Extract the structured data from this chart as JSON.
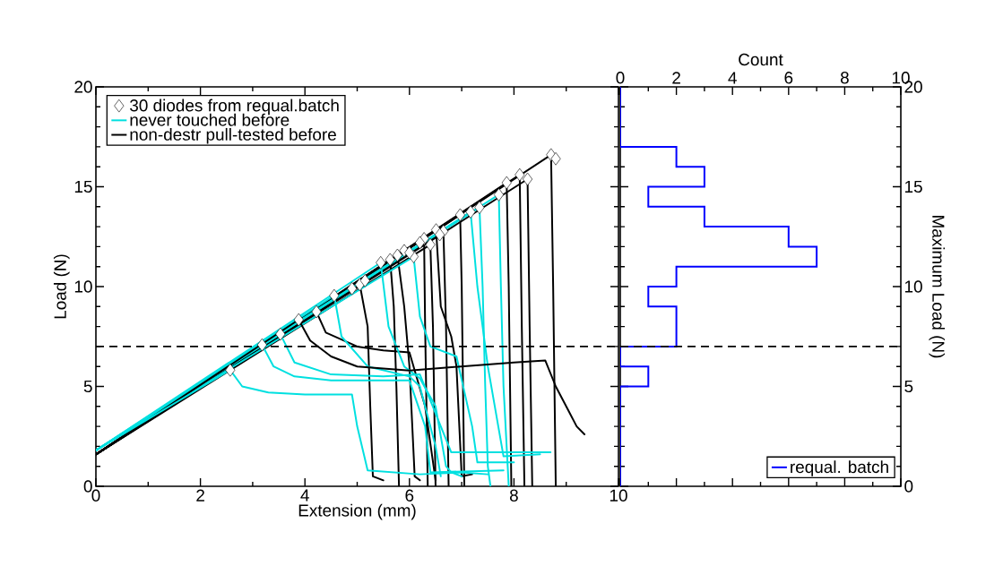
{
  "chart_data": [
    {
      "type": "line",
      "xlabel": "Extension (mm)",
      "ylabel": "Load (N)",
      "xlim": [
        0,
        10
      ],
      "xticks": [
        0,
        2,
        4,
        6,
        8,
        10
      ],
      "ylim": [
        0,
        20
      ],
      "yticks": [
        0,
        5,
        10,
        15,
        20
      ],
      "legend": "top left",
      "ref_lines": [
        {
          "axis": "y",
          "value": 7,
          "color": "#000000",
          "line_style": "dashed"
        }
      ],
      "series": [
        {
          "name": "30 diodes from requal.batch",
          "type": "scatter",
          "marker": "diamond",
          "color": "#000000",
          "x": [
            2.57,
            3.18,
            3.53,
            3.88,
            4.22,
            4.56,
            5.05,
            5.45,
            5.63,
            5.77,
            6.08,
            6.28,
            6.4,
            6.51,
            6.65,
            6.97,
            7.17,
            7.34,
            7.71,
            7.86,
            8.11,
            8.26,
            8.71,
            5.15,
            6.2,
            6.58,
            5.9,
            4.9,
            8.8,
            6.0
          ],
          "values": [
            5.82,
            7.08,
            7.62,
            8.34,
            8.74,
            9.55,
            10.1,
            11.2,
            11.35,
            11.57,
            11.5,
            12.4,
            12.1,
            12.84,
            12.77,
            13.59,
            13.74,
            13.96,
            14.6,
            15.2,
            15.6,
            15.38,
            16.6,
            10.3,
            12.2,
            12.6,
            11.8,
            9.9,
            16.4,
            11.7
          ]
        },
        {
          "name": "never touched before",
          "color": "#00e0e0",
          "x": [
            0,
            2.57,
            2.8,
            3.3,
            4.0,
            4.9,
            5.0,
            5.2,
            6.2,
            7.0,
            7.5
          ],
          "values": [
            1.8,
            5.82,
            5.0,
            4.7,
            4.6,
            4.6,
            3.0,
            0.8,
            0.6,
            0.7,
            0.6
          ]
        },
        {
          "name": "non-destr pull-tested before",
          "color": "#000000",
          "x": [
            0,
            3.88,
            4.1,
            4.5,
            5.0,
            6.0,
            7.0,
            8.0,
            8.6,
            8.8,
            9.0,
            9.2,
            9.35
          ],
          "values": [
            1.6,
            8.34,
            7.3,
            6.5,
            6.0,
            5.8,
            6.0,
            6.2,
            6.3,
            5.0,
            4.0,
            3.0,
            2.6
          ]
        },
        {
          "color": "#00e0e0",
          "x": [
            0,
            3.18,
            3.4,
            3.8,
            4.5,
            5.5,
            6.0,
            6.3,
            6.4,
            7.8
          ],
          "values": [
            1.8,
            7.08,
            6.0,
            5.5,
            5.3,
            5.3,
            5.3,
            3.0,
            0.7,
            0.8
          ]
        },
        {
          "color": "#00e0e0",
          "x": [
            0,
            3.53,
            3.8,
            4.5,
            5.5,
            6.2,
            6.6,
            6.8,
            8.7
          ],
          "values": [
            1.8,
            7.62,
            6.2,
            5.6,
            5.5,
            5.6,
            3.0,
            1.7,
            1.7
          ]
        },
        {
          "color": "#00e0e0",
          "x": [
            0,
            4.56,
            4.7,
            5.2,
            6.0,
            6.2,
            6.5,
            6.6
          ],
          "values": [
            1.8,
            9.55,
            7.5,
            6.0,
            5.5,
            5.0,
            2.0,
            0.5
          ]
        },
        {
          "color": "#00e0e0",
          "x": [
            0,
            5.45,
            5.6,
            5.9,
            6.2,
            6.5,
            6.7,
            6.8,
            7.0
          ],
          "values": [
            1.8,
            11.2,
            8.0,
            6.0,
            5.4,
            4.0,
            1.0,
            0.7,
            0.5
          ]
        },
        {
          "color": "#00e0e0",
          "x": [
            0,
            6.08,
            6.2,
            6.4,
            6.9,
            7.2,
            7.3,
            8.0
          ],
          "values": [
            1.8,
            11.5,
            8.5,
            7.0,
            6.5,
            3.0,
            1.2,
            1.2
          ]
        },
        {
          "color": "#00e0e0",
          "x": [
            0,
            7.17,
            7.3,
            7.5,
            7.7,
            7.8,
            8.5
          ],
          "values": [
            1.8,
            13.74,
            10.0,
            6.0,
            3.0,
            1.5,
            1.6
          ]
        },
        {
          "color": "#00e0e0",
          "x": [
            0,
            7.34,
            7.4,
            7.45,
            7.5,
            7.55
          ],
          "values": [
            1.8,
            13.96,
            10.0,
            5.0,
            1.0,
            0.0
          ]
        },
        {
          "color": "#00e0e0",
          "x": [
            0,
            7.71,
            7.75,
            7.8,
            7.9
          ],
          "values": [
            1.8,
            14.6,
            10.0,
            5.0,
            0.0
          ]
        },
        {
          "color": "#000000",
          "x": [
            0,
            4.22,
            4.4,
            5.0,
            5.5,
            6.0,
            6.3,
            6.5
          ],
          "values": [
            1.6,
            8.74,
            7.7,
            7.0,
            6.8,
            6.7,
            4.0,
            0.3
          ]
        },
        {
          "color": "#000000",
          "x": [
            0,
            5.05,
            5.2,
            5.25,
            5.3,
            5.5
          ],
          "values": [
            1.6,
            10.1,
            8.0,
            4.0,
            0.5,
            0.3
          ]
        },
        {
          "color": "#000000",
          "x": [
            0,
            5.63,
            5.7,
            5.75,
            5.8
          ],
          "values": [
            1.6,
            11.35,
            9.0,
            5.0,
            0.0
          ]
        },
        {
          "color": "#000000",
          "x": [
            0,
            5.77,
            5.9,
            6.0,
            6.1,
            6.2
          ],
          "values": [
            1.6,
            11.57,
            9.0,
            6.0,
            0.5,
            0.3
          ]
        },
        {
          "color": "#000000",
          "x": [
            0,
            6.28,
            6.3,
            6.35
          ],
          "values": [
            1.6,
            12.4,
            8.0,
            0.0
          ]
        },
        {
          "color": "#000000",
          "x": [
            0,
            6.4,
            6.45,
            6.5
          ],
          "values": [
            1.6,
            12.1,
            8.0,
            0.0
          ]
        },
        {
          "color": "#000000",
          "x": [
            0,
            6.51,
            6.6,
            6.8,
            6.9,
            7.0,
            7.2
          ],
          "values": [
            1.6,
            12.84,
            9.0,
            7.5,
            6.0,
            0.5,
            0.6
          ]
        },
        {
          "color": "#000000",
          "x": [
            0,
            6.65,
            6.7,
            6.75
          ],
          "values": [
            1.6,
            12.77,
            8.0,
            0.0
          ]
        },
        {
          "color": "#000000",
          "x": [
            0,
            6.97,
            7.0,
            7.05
          ],
          "values": [
            1.6,
            13.59,
            10.0,
            0.0
          ]
        },
        {
          "color": "#000000",
          "x": [
            0,
            7.86,
            7.9,
            7.95
          ],
          "values": [
            1.6,
            15.2,
            10.0,
            0.0
          ]
        },
        {
          "color": "#000000",
          "x": [
            0,
            8.11,
            8.15,
            8.2
          ],
          "values": [
            1.6,
            15.6,
            8.0,
            0.0
          ]
        },
        {
          "color": "#000000",
          "x": [
            0,
            8.26,
            8.3,
            8.35
          ],
          "values": [
            1.6,
            15.38,
            8.0,
            0.0
          ]
        },
        {
          "color": "#000000",
          "x": [
            0,
            8.71,
            8.75,
            8.8
          ],
          "values": [
            1.6,
            16.6,
            10.0,
            0.0
          ]
        }
      ]
    },
    {
      "type": "histogram",
      "orientation": "horizontal",
      "xlabel": "Count",
      "ylabel": "Maximum Load (N)",
      "xlim": [
        0,
        10
      ],
      "xticks": [
        0,
        2,
        4,
        6,
        8,
        10
      ],
      "ylim": [
        0,
        20
      ],
      "yticks": [
        0,
        5,
        10,
        15,
        20
      ],
      "legend": "bottom right",
      "ref_lines": [
        {
          "axis": "y",
          "value": 7,
          "color": "#000000",
          "line_style": "dashed"
        }
      ],
      "bins": [
        0,
        1,
        2,
        3,
        4,
        5,
        6,
        7,
        8,
        9,
        10,
        11,
        12,
        13,
        14,
        15,
        16,
        17,
        18,
        19,
        20
      ],
      "series": [
        {
          "name": "requal. batch",
          "color": "#0000ff",
          "values": [
            0,
            0,
            0,
            0,
            0,
            1,
            0,
            2,
            2,
            1,
            2,
            7,
            6,
            3,
            1,
            3,
            2,
            0,
            0,
            0
          ]
        }
      ]
    }
  ]
}
